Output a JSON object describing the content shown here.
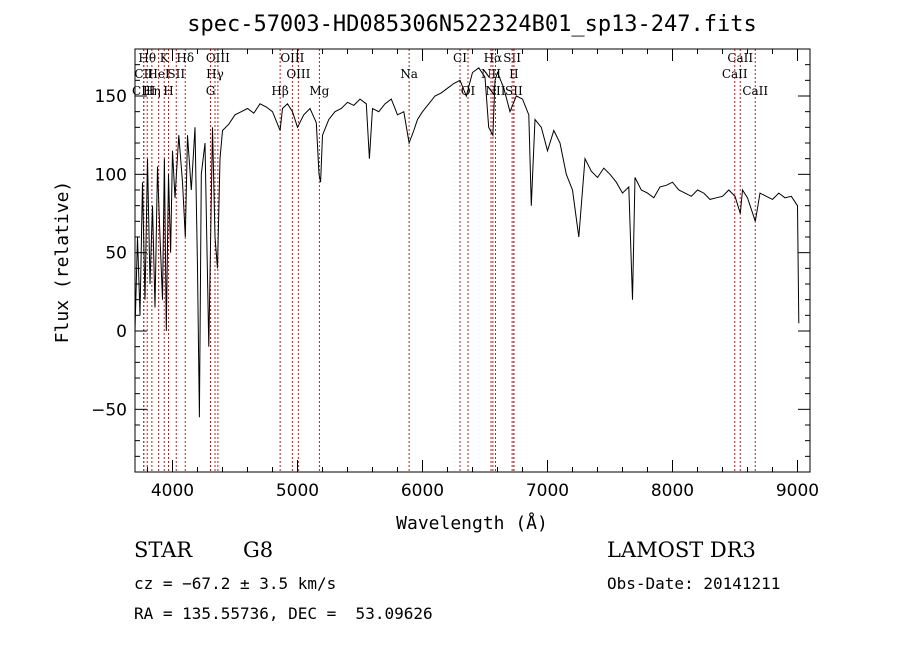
{
  "chart_data": {
    "type": "line",
    "title": "spec-57003-HD085306N522324B01_sp13-247.fits",
    "xlabel": "Wavelength (Å)",
    "ylabel": "Flux (relative)",
    "xlim": [
      3700,
      9100
    ],
    "ylim": [
      -90,
      180
    ],
    "xticks": [
      4000,
      5000,
      6000,
      7000,
      8000,
      9000
    ],
    "yticks": [
      -50,
      0,
      50,
      100,
      150
    ],
    "series": [
      {
        "x": [
          3700,
          3720,
          3740,
          3760,
          3780,
          3800,
          3820,
          3840,
          3860,
          3880,
          3900,
          3920,
          3935,
          3950,
          3968,
          3985,
          4000,
          4020,
          4050,
          4080,
          4102,
          4120,
          4150,
          4180,
          4200,
          4215,
          4230,
          4260,
          4290,
          4320,
          4340,
          4360,
          4380,
          4400,
          4450,
          4500,
          4550,
          4600,
          4650,
          4700,
          4750,
          4800,
          4861,
          4880,
          4920,
          4960,
          5000,
          5050,
          5100,
          5150,
          5172,
          5185,
          5200,
          5250,
          5300,
          5350,
          5400,
          5450,
          5500,
          5550,
          5575,
          5600,
          5650,
          5700,
          5750,
          5800,
          5850,
          5893,
          5930,
          5960,
          6000,
          6050,
          6100,
          6150,
          6200,
          6250,
          6300,
          6350,
          6400,
          6450,
          6500,
          6530,
          6563,
          6580,
          6600,
          6650,
          6700,
          6750,
          6800,
          6850,
          6870,
          6900,
          6950,
          7000,
          7050,
          7100,
          7150,
          7200,
          7250,
          7300,
          7350,
          7400,
          7450,
          7500,
          7550,
          7600,
          7650,
          7680,
          7700,
          7750,
          7800,
          7850,
          7900,
          7950,
          8000,
          8050,
          8100,
          8150,
          8200,
          8250,
          8300,
          8350,
          8400,
          8450,
          8500,
          8542,
          8560,
          8600,
          8662,
          8700,
          8750,
          8800,
          8850,
          8900,
          8950,
          9000,
          9010
        ],
        "values": [
          0,
          60,
          10,
          95,
          20,
          110,
          30,
          80,
          15,
          105,
          60,
          20,
          110,
          0,
          100,
          50,
          115,
          85,
          125,
          95,
          60,
          125,
          90,
          130,
          40,
          -55,
          100,
          120,
          -10,
          130,
          60,
          40,
          110,
          128,
          132,
          138,
          140,
          142,
          139,
          145,
          143,
          140,
          128,
          142,
          145,
          140,
          130,
          138,
          142,
          133,
          100,
          95,
          125,
          135,
          140,
          142,
          146,
          144,
          148,
          145,
          110,
          142,
          140,
          145,
          148,
          138,
          140,
          120,
          128,
          135,
          140,
          145,
          150,
          152,
          155,
          158,
          160,
          150,
          165,
          168,
          162,
          130,
          125,
          160,
          165,
          155,
          140,
          150,
          148,
          138,
          80,
          135,
          130,
          115,
          128,
          120,
          100,
          90,
          60,
          110,
          102,
          98,
          104,
          100,
          95,
          88,
          92,
          20,
          98,
          90,
          88,
          85,
          92,
          93,
          95,
          90,
          88,
          86,
          90,
          88,
          84,
          85,
          86,
          90,
          86,
          75,
          90,
          85,
          70,
          88,
          86,
          84,
          88,
          85,
          86,
          80,
          5
        ]
      }
    ],
    "line_markers": [
      {
        "label": "Hθ",
        "x": 3798,
        "row": 0
      },
      {
        "label": "CII",
        "x": 3770,
        "row": 1
      },
      {
        "label": "CIII",
        "x": 3770,
        "row": 2
      },
      {
        "label": "K",
        "x": 3934,
        "row": 0
      },
      {
        "label": "HeI",
        "x": 3889,
        "row": 1
      },
      {
        "label": "Hη",
        "x": 3835,
        "row": 2
      },
      {
        "label": "Hδ",
        "x": 4102,
        "row": 0
      },
      {
        "label": "SII",
        "x": 4030,
        "row": 1
      },
      {
        "label": "H",
        "x": 3968,
        "row": 2
      },
      {
        "label": "OIII",
        "x": 4363,
        "row": 0
      },
      {
        "label": "Hγ",
        "x": 4340,
        "row": 1
      },
      {
        "label": "G",
        "x": 4304,
        "row": 2
      },
      {
        "label": "Hβ",
        "x": 4861,
        "row": 2
      },
      {
        "label": "OIII",
        "x": 4959,
        "row": 0
      },
      {
        "label": "OIII",
        "x": 5007,
        "row": 1
      },
      {
        "label": "Mg",
        "x": 5175,
        "row": 2
      },
      {
        "label": "Na",
        "x": 5893,
        "row": 1
      },
      {
        "label": "CI",
        "x": 6300,
        "row": 0
      },
      {
        "label": "OI",
        "x": 6364,
        "row": 2
      },
      {
        "label": "Hα",
        "x": 6563,
        "row": 0
      },
      {
        "label": "NII",
        "x": 6548,
        "row": 1
      },
      {
        "label": "NII",
        "x": 6584,
        "row": 2
      },
      {
        "label": "SII",
        "x": 6717,
        "row": 0
      },
      {
        "label": "II",
        "x": 6731,
        "row": 1
      },
      {
        "label": "SII",
        "x": 6731,
        "row": 2
      },
      {
        "label": "CaII",
        "x": 8542,
        "row": 0
      },
      {
        "label": "CaII",
        "x": 8498,
        "row": 1
      },
      {
        "label": "CaII",
        "x": 8662,
        "row": 2
      }
    ]
  },
  "info": {
    "class": "STAR",
    "subclass": "G8",
    "survey": "LAMOST DR3",
    "cz": "cz = −67.2 ± 3.5 km/s",
    "obs_date": "Obs-Date: 20141211",
    "coords": "RA = 135.55736, DEC =  53.09626"
  }
}
